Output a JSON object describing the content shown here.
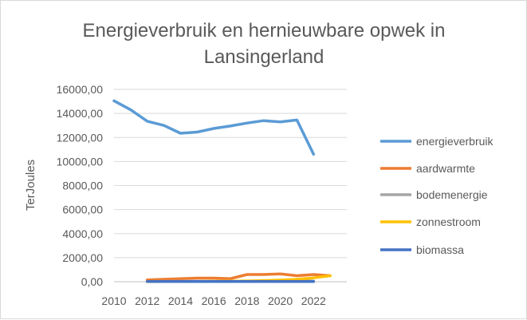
{
  "chart_data": {
    "type": "line",
    "title_line1": "Energieverbruik en hernieuwbare opwek in",
    "title_line2": "Lansingerland",
    "xlabel": "",
    "ylabel": "TerJoules",
    "ylim": [
      0,
      16000
    ],
    "yticks": [
      "0,00",
      "2000,00",
      "4000,00",
      "6000,00",
      "8000,00",
      "10000,00",
      "12000,00",
      "14000,00",
      "16000,00"
    ],
    "xlim": [
      2010,
      2024
    ],
    "xticks": [
      "2010",
      "2012",
      "2014",
      "2016",
      "2018",
      "2020",
      "2022"
    ],
    "grid": true,
    "legend_position": "right",
    "series": [
      {
        "name": "energieverbruik",
        "color": "#5b9bd5",
        "x": [
          2010,
          2011,
          2012,
          2013,
          2014,
          2015,
          2016,
          2017,
          2018,
          2019,
          2020,
          2021,
          2022
        ],
        "values": [
          15050,
          14300,
          13350,
          13000,
          12350,
          12450,
          12750,
          12950,
          13200,
          13400,
          13300,
          13450,
          10600
        ]
      },
      {
        "name": "aardwarmte",
        "color": "#ed7d31",
        "x": [
          2012,
          2013,
          2014,
          2015,
          2016,
          2017,
          2018,
          2019,
          2020,
          2021,
          2022,
          2023
        ],
        "values": [
          150,
          200,
          250,
          300,
          300,
          250,
          600,
          600,
          650,
          500,
          600,
          500
        ]
      },
      {
        "name": "bodemenergie",
        "color": "#a5a5a5",
        "x": [
          2012,
          2013,
          2014,
          2015,
          2016,
          2017,
          2018,
          2019,
          2020,
          2021,
          2022
        ],
        "values": [
          20,
          25,
          30,
          30,
          35,
          40,
          40,
          45,
          50,
          50,
          55
        ]
      },
      {
        "name": "zonnestroom",
        "color": "#ffc000",
        "x": [
          2012,
          2013,
          2014,
          2015,
          2016,
          2017,
          2018,
          2019,
          2020,
          2021,
          2022,
          2023
        ],
        "values": [
          5,
          10,
          15,
          20,
          30,
          40,
          60,
          90,
          130,
          200,
          320,
          500
        ]
      },
      {
        "name": "biomassa",
        "color": "#4472c4",
        "x": [
          2012,
          2013,
          2014,
          2015,
          2016,
          2017,
          2018,
          2019,
          2020,
          2021,
          2022
        ],
        "values": [
          15,
          15,
          15,
          15,
          15,
          15,
          20,
          20,
          20,
          20,
          20
        ]
      }
    ]
  }
}
